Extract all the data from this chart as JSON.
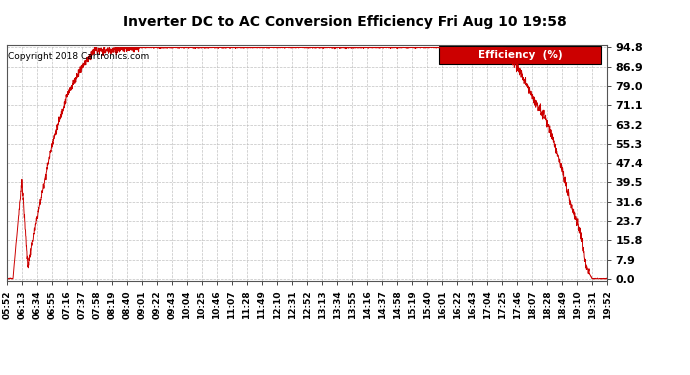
{
  "title": "Inverter DC to AC Conversion Efficiency Fri Aug 10 19:58",
  "copyright": "Copyright 2018 Cartronics.com",
  "legend_label": "Efficiency  (%)",
  "legend_bg": "#cc0000",
  "legend_fg": "#ffffff",
  "line_color": "#cc0000",
  "bg_color": "#ffffff",
  "plot_bg_color": "#ffffff",
  "grid_color": "#bbbbbb",
  "yticks": [
    0.0,
    7.9,
    15.8,
    23.7,
    31.6,
    39.5,
    47.4,
    55.3,
    63.2,
    71.1,
    79.0,
    86.9,
    94.8
  ],
  "ymax": 94.8,
  "ymin": 0.0,
  "x_tick_labels": [
    "05:52",
    "06:13",
    "06:34",
    "06:55",
    "07:16",
    "07:37",
    "07:58",
    "08:19",
    "08:40",
    "09:01",
    "09:22",
    "09:43",
    "10:04",
    "10:25",
    "10:46",
    "11:07",
    "11:28",
    "11:49",
    "12:10",
    "12:31",
    "12:52",
    "13:13",
    "13:34",
    "13:55",
    "14:16",
    "14:37",
    "14:58",
    "15:19",
    "15:40",
    "16:01",
    "16:22",
    "16:43",
    "17:04",
    "17:25",
    "17:46",
    "18:07",
    "18:28",
    "18:49",
    "19:10",
    "19:31",
    "19:52"
  ],
  "n_xticks": 41
}
